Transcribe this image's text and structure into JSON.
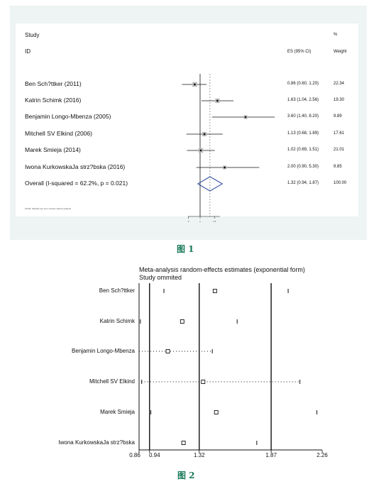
{
  "chart_data": [
    {
      "type": "forest",
      "headers": {
        "study": "Study",
        "id": "ID",
        "es": "ES (95% CI)",
        "pct": "%",
        "weight": "Weight"
      },
      "rows": [
        {
          "label": "Ben Sch?ttker (2011)",
          "es": 0.86,
          "lo": 0.6,
          "hi": 1.2,
          "es_text": "0.86 (0.60, 1.20)",
          "weight": "22.34"
        },
        {
          "label": "Katrin Schimk (2016)",
          "es": 1.63,
          "lo": 1.04,
          "hi": 2.56,
          "es_text": "1.63 (1.04, 2.56)",
          "weight": "19.30"
        },
        {
          "label": "Benjamin Longo-Mbenza (2005)",
          "es": 3.6,
          "lo": 1.4,
          "hi": 8.2,
          "es_text": "3.60 (1.40, 8.20)",
          "weight": "9.89"
        },
        {
          "label": "Mitchell SV Elkind (2006)",
          "es": 1.13,
          "lo": 0.68,
          "hi": 1.89,
          "es_text": "1.13 (0.68, 1.89)",
          "weight": "17.61"
        },
        {
          "label": "Marek Smieja (2014)",
          "es": 1.02,
          "lo": 0.69,
          "hi": 1.51,
          "es_text": "1.02 (0.69, 1.51)",
          "weight": "21.01"
        },
        {
          "label": "Iwona KurkowskaJa strz?bska (2016)",
          "es": 2.0,
          "lo": 0.9,
          "hi": 5.3,
          "es_text": "2.00 (0.90, 5.30)",
          "weight": "9.85"
        }
      ],
      "overall": {
        "label": "Overall  (I-squared = 62.2%, p = 0.021)",
        "es": 1.32,
        "lo": 0.94,
        "hi": 1.87,
        "es_text": "1.32 (0.94, 1.87)",
        "weight": "100.00"
      },
      "note": "NOTE: Weights are from random effects analysis",
      "x_ticks": [
        "0",
        "1",
        "1.5"
      ],
      "x_scale": "log",
      "null_line": 1
    },
    {
      "type": "scatter",
      "title": "Meta-analysis random-effects estimates (exponential form)",
      "subtitle": "Study ommited",
      "categories": [
        "Ben Sch?ttker",
        "Katrin Schimk",
        "Benjamin  Longo-Mbenza",
        "Mitchell SV Elkind",
        "Marek Smieja",
        "Iwona KurkowskaJa strz?bska"
      ],
      "points": [
        {
          "est": 1.44,
          "lo": 1.05,
          "hi": 2.0
        },
        {
          "est": 1.19,
          "lo": 0.87,
          "hi": 1.61
        },
        {
          "est": 1.08,
          "lo": 0.86,
          "hi": 1.42
        },
        {
          "est": 1.35,
          "lo": 0.88,
          "hi": 2.09
        },
        {
          "est": 1.45,
          "lo": 0.95,
          "hi": 2.22
        },
        {
          "est": 1.2,
          "lo": 0.86,
          "hi": 1.76
        }
      ],
      "x_ticks": [
        "0.86",
        "0.94",
        "1.32",
        "1.87",
        "2.26"
      ],
      "xlim": [
        0.86,
        2.26
      ],
      "reference_lines": [
        0.94,
        1.32,
        1.87
      ]
    }
  ],
  "captions": {
    "fig1": "图 1",
    "fig2": "图 2"
  }
}
